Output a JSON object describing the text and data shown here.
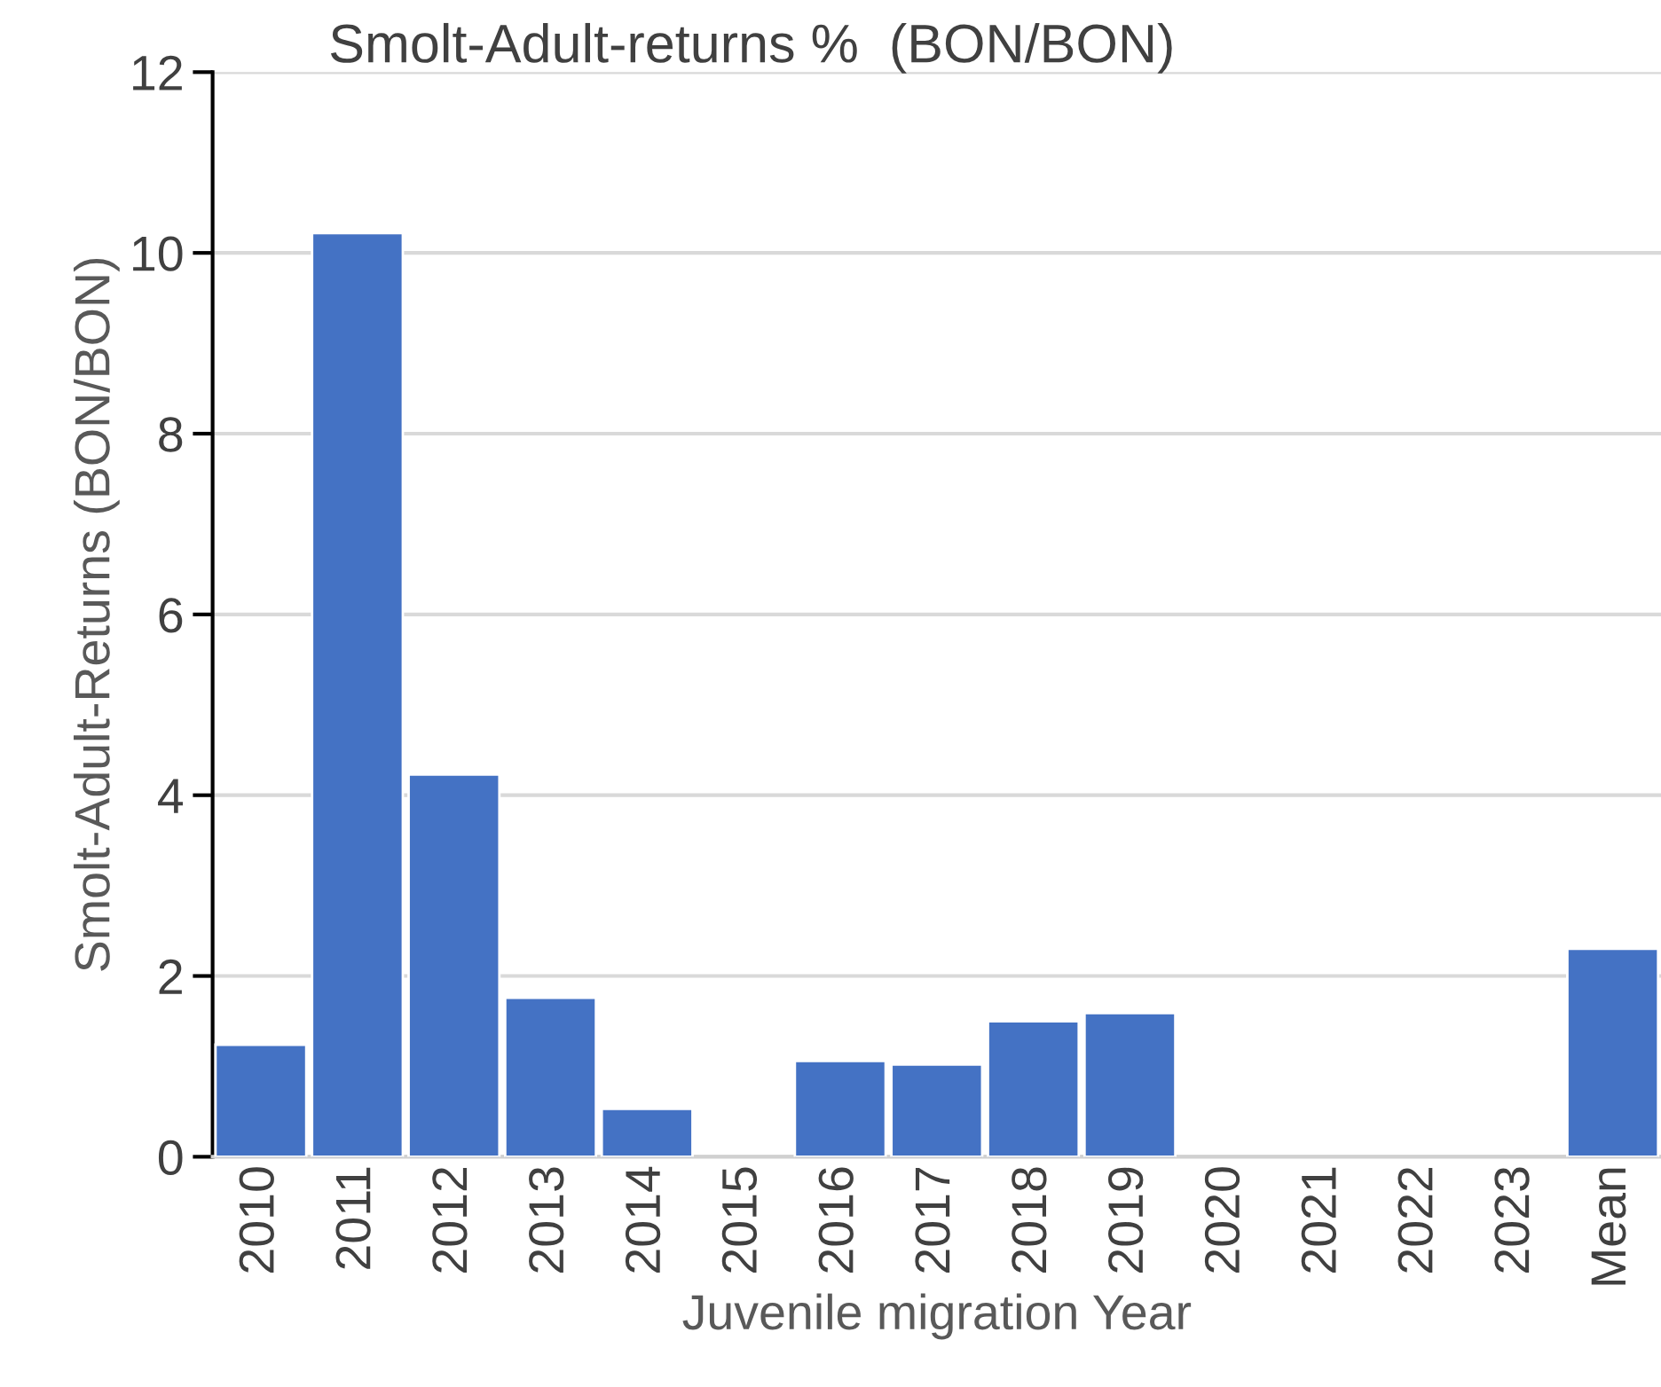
{
  "chart_data": {
    "type": "bar",
    "title": "Smolt-Adult-returns %  (BON/BON)",
    "xlabel": "Juvenile migration Year",
    "ylabel": "Smolt-Adult-Returns (BON/BON)",
    "categories": [
      "2010",
      "2011",
      "2012",
      "2013",
      "2014",
      "2015",
      "2016",
      "2017",
      "2018",
      "2019",
      "2020",
      "2021",
      "2022",
      "2023",
      "Mean"
    ],
    "values": [
      1.24,
      10.22,
      4.23,
      1.76,
      0.53,
      null,
      1.06,
      1.02,
      1.5,
      1.59,
      null,
      null,
      null,
      null,
      2.3
    ],
    "color": "#4472c4",
    "ylim": [
      0,
      12
    ],
    "yticks": [
      0,
      2,
      4,
      6,
      8,
      10,
      12
    ],
    "grid": "y",
    "legend": false
  }
}
